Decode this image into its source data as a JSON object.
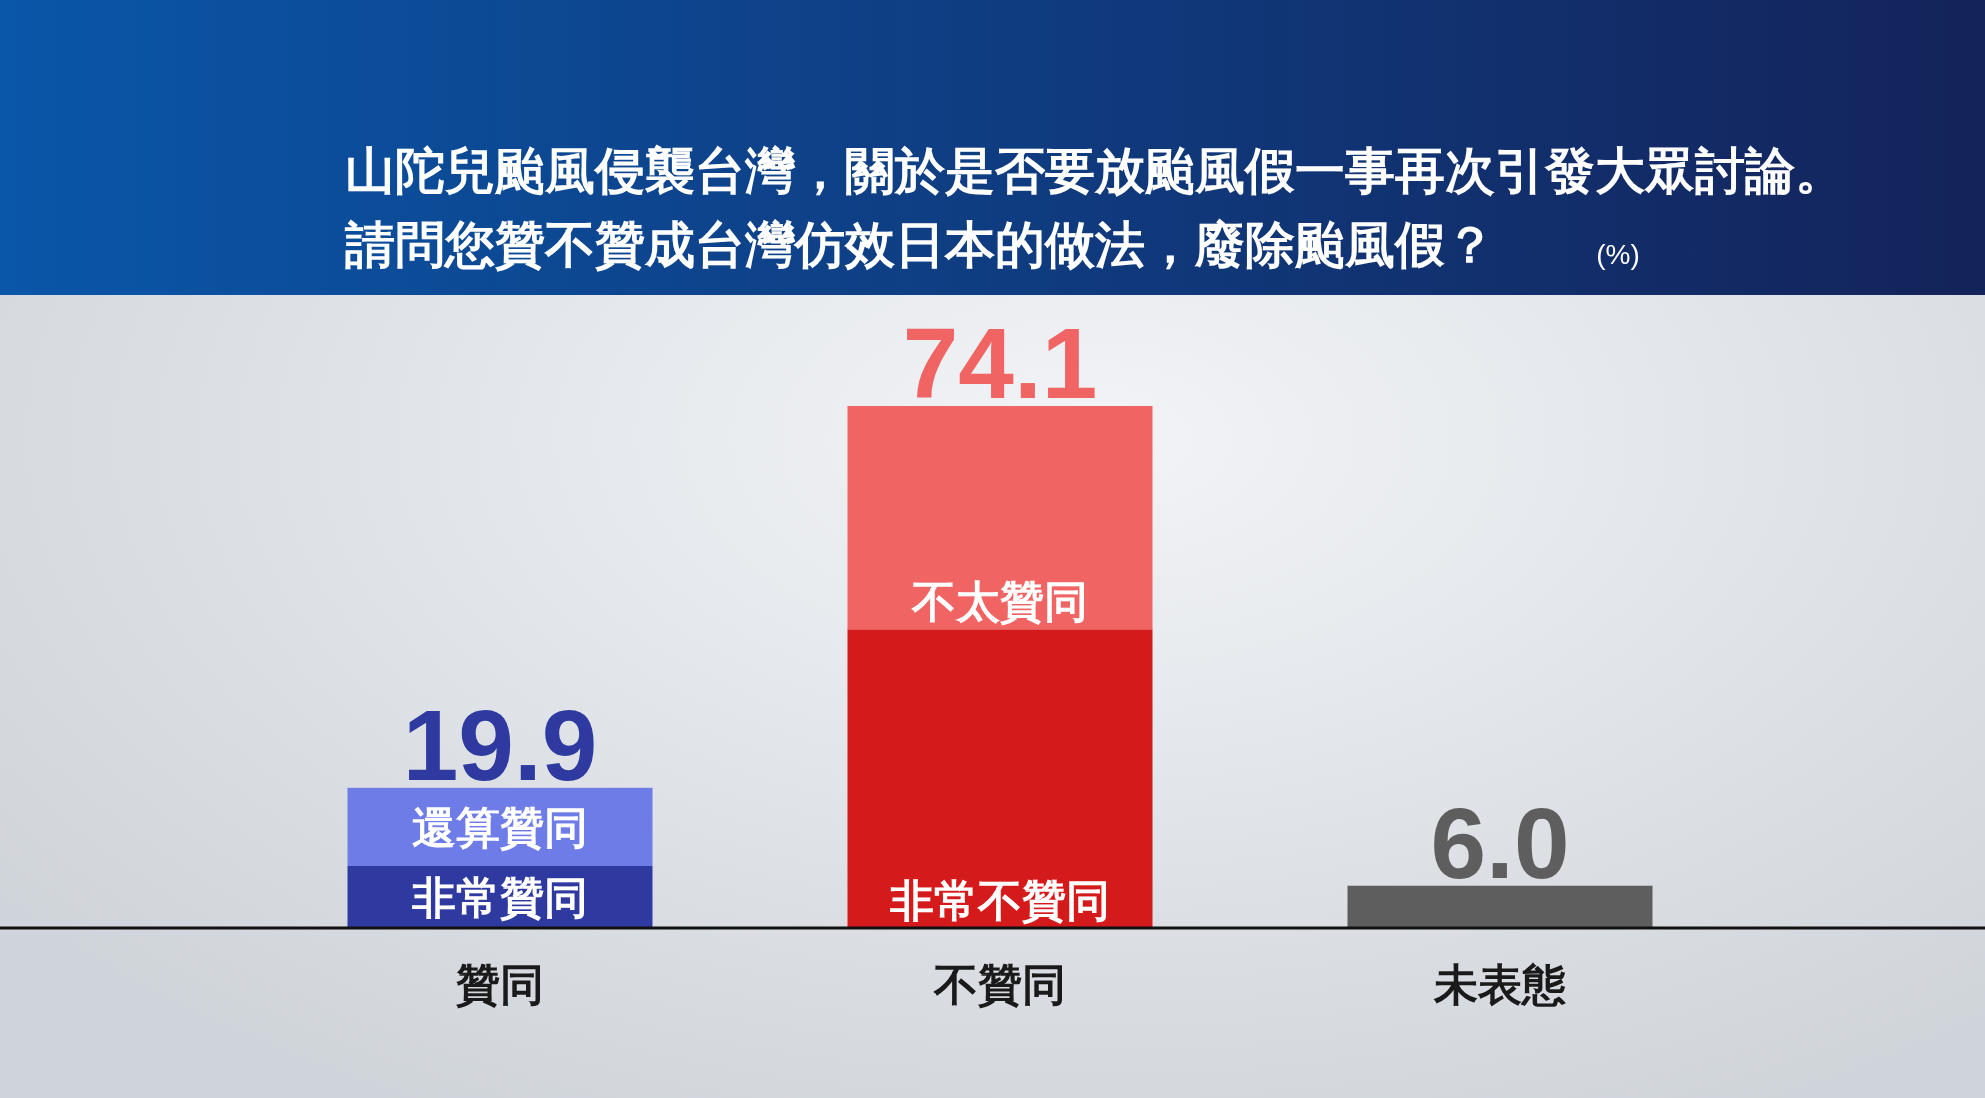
{
  "chart_data": {
    "type": "bar",
    "title": "山陀兒颱風侵襲台灣，關於是否要放颱風假一事再次引發大眾討論。",
    "subtitle": "請問您贊不贊成台灣仿效日本的做法，廢除颱風假？",
    "annotations": [
      "(%)"
    ],
    "categories": [
      "贊同",
      "不贊同",
      "未表態"
    ],
    "stacked": true,
    "series": [
      {
        "name": "非常贊同",
        "color": "#2f3aa0",
        "values": [
          8.8,
          null,
          null
        ]
      },
      {
        "name": "還算贊同",
        "color": "#6d7ce6",
        "values": [
          11.1,
          null,
          null
        ]
      },
      {
        "name": "非常不贊同",
        "color": "#d41a1a",
        "values": [
          null,
          42.4,
          null
        ]
      },
      {
        "name": "不太贊同",
        "color": "#f06464",
        "values": [
          null,
          31.7,
          null
        ]
      },
      {
        "color": "#5e5e5e",
        "values": [
          null,
          null,
          6.0
        ],
        "value_labels": [
          null,
          null,
          "6.0"
        ]
      }
    ],
    "totals": [
      "19.9",
      "74.1",
      null
    ]
  }
}
